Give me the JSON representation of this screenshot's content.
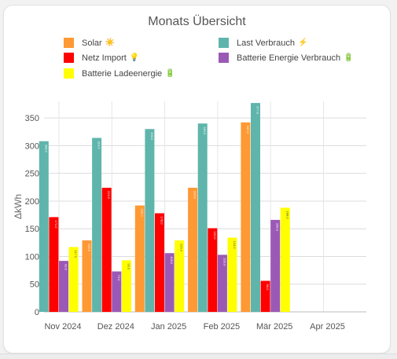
{
  "chart_data": {
    "type": "bar",
    "title": "Monats Übersicht",
    "ylabel": "ΔkWh",
    "xlabel": "",
    "ylim": [
      0,
      380
    ],
    "yticks": [
      0,
      50,
      100,
      150,
      200,
      250,
      300,
      350
    ],
    "grid": true,
    "legend_position": "top",
    "categories": [
      "Nov 2024",
      "Dez 2024",
      "Jan 2025",
      "Feb 2025",
      "Mär 2025",
      "Apr 2025"
    ],
    "series": [
      {
        "name": "Solar",
        "icon": "sun-icon",
        "glyph": "☀️",
        "color": "#ff9933",
        "values": [
          null,
          129,
          192,
          224,
          342,
          null
        ]
      },
      {
        "name": "Last Verbrauch",
        "icon": "lightning-icon",
        "glyph": "⚡",
        "color": "#5fb5ab",
        "values": [
          308,
          314,
          330,
          340,
          377,
          null
        ]
      },
      {
        "name": "Netz Import",
        "icon": "lightbulb-icon",
        "glyph": "💡",
        "color": "#ff0000",
        "values": [
          171,
          224,
          178,
          151,
          56,
          null
        ]
      },
      {
        "name": "Batterie Energie Verbrauch",
        "icon": "battery-icon",
        "glyph": "🔋",
        "color": "#9b59b6",
        "values": [
          92,
          73,
          106,
          103,
          166,
          null
        ]
      },
      {
        "name": "Batterie Ladeenergie",
        "icon": "battery-icon",
        "glyph": "🔋",
        "color": "#ffff00",
        "values": [
          117,
          93,
          129,
          134,
          188,
          null
        ]
      }
    ]
  }
}
